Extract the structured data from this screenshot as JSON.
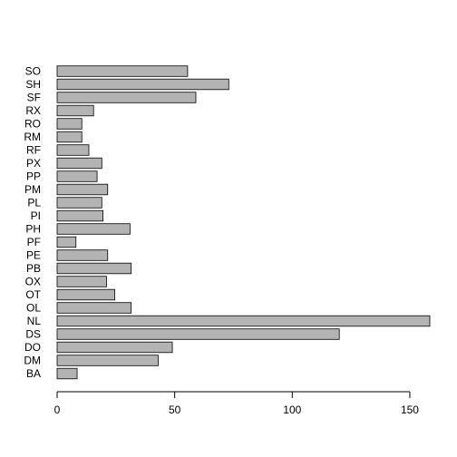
{
  "chart_data": {
    "type": "bar",
    "orientation": "horizontal",
    "categories": [
      "SO",
      "SH",
      "SF",
      "RX",
      "RO",
      "RM",
      "RF",
      "PX",
      "PP",
      "PM",
      "PL",
      "PI",
      "PH",
      "PF",
      "PE",
      "PB",
      "OX",
      "OT",
      "OL",
      "NL",
      "DS",
      "DO",
      "DM",
      "BA"
    ],
    "values": [
      55.5,
      73,
      59,
      15.5,
      10.5,
      10.5,
      13.5,
      19,
      17,
      21.5,
      19,
      19.5,
      31,
      8,
      21.5,
      31.5,
      21,
      24.5,
      31.5,
      158.5,
      120,
      49,
      43,
      8.5
    ],
    "xlim": [
      0,
      158.5
    ],
    "xticks": [
      0,
      50,
      100,
      150
    ],
    "xtick_labels": [
      "0",
      "50",
      "100",
      "150"
    ],
    "bar_color": "#b3b3b3",
    "grid": false,
    "title": "",
    "xlabel": "",
    "ylabel": ""
  }
}
